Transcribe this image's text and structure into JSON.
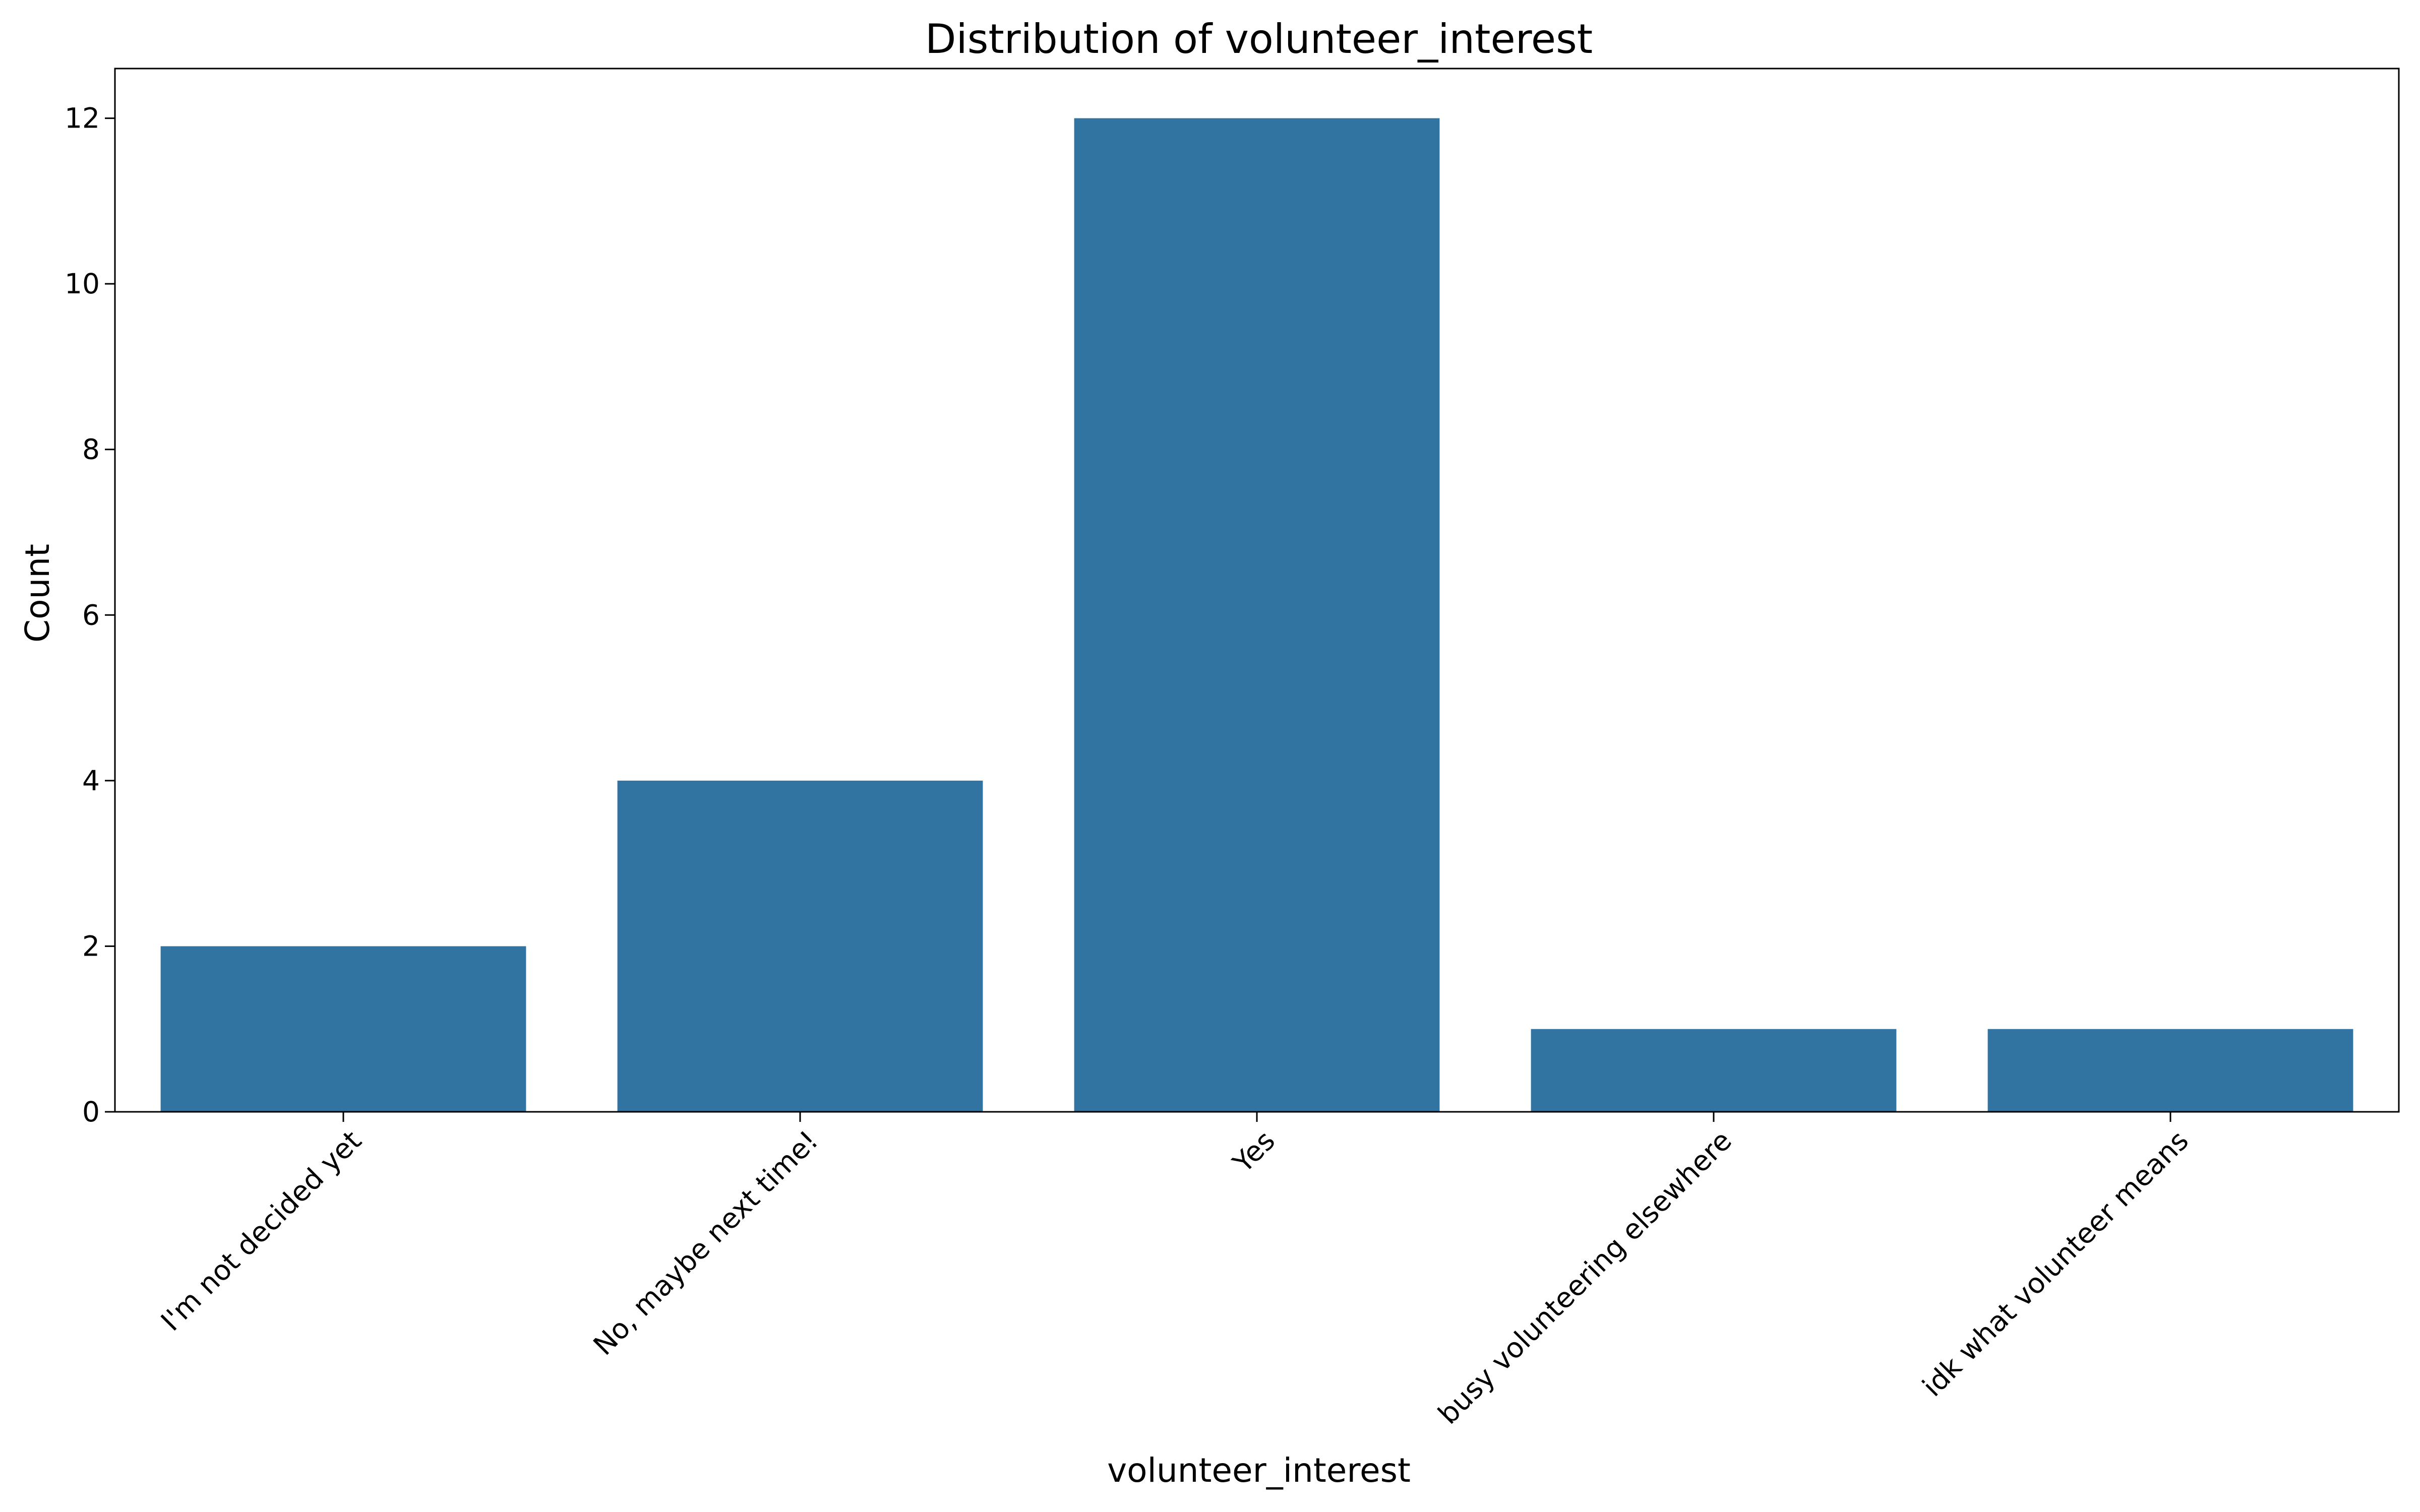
{
  "chart_data": {
    "type": "bar",
    "title": "Distribution of volunteer_interest",
    "xlabel": "volunteer_interest",
    "ylabel": "Count",
    "categories": [
      "I'm not decided yet",
      "No, maybe next time!",
      "Yes",
      "busy volunteering elsewhere",
      "idk what volunteer means"
    ],
    "values": [
      2,
      4,
      12,
      1,
      1
    ],
    "ylim": [
      0,
      12.6
    ],
    "yticks": [
      0,
      2,
      4,
      6,
      8,
      10,
      12
    ],
    "grid": false,
    "bar_color": "#3274a1"
  }
}
